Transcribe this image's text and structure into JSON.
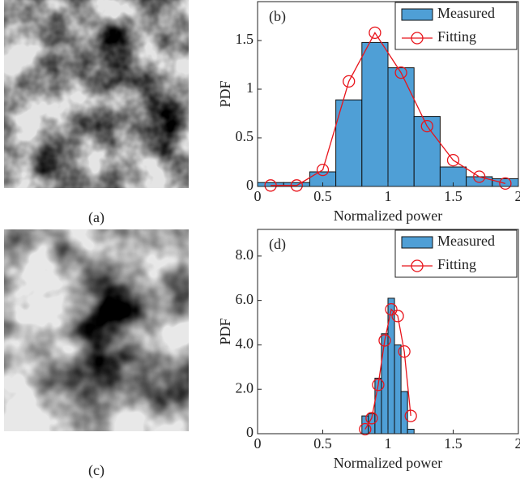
{
  "images": [
    {
      "caption": "(a)"
    },
    {
      "caption": "(c)"
    }
  ],
  "chart_data": [
    {
      "type": "histogram",
      "annotation": "(b)",
      "xlabel": "Normalized power",
      "ylabel": "PDF",
      "bins": [
        0,
        0.2,
        0.4,
        0.6,
        0.8,
        1.0,
        1.2,
        1.4,
        1.6,
        1.8,
        2.0
      ],
      "xlim": [
        0,
        2
      ],
      "xticks": [
        0,
        0.5,
        1,
        1.5,
        2
      ],
      "ylim": [
        0,
        1.9
      ],
      "yticks": [
        0,
        0.5,
        1,
        1.5
      ],
      "legend": "northeast",
      "series": [
        {
          "name": "Measured",
          "color": "#4f9fd6",
          "values": [
            0.04,
            0.04,
            0.15,
            0.89,
            1.48,
            1.22,
            0.72,
            0.2,
            0.1,
            0.08
          ]
        },
        {
          "name": "Fitting",
          "color": "#e8141b",
          "x": [
            0.1,
            0.3,
            0.5,
            0.7,
            0.9,
            1.1,
            1.3,
            1.5,
            1.7,
            1.9
          ],
          "values": [
            0.01,
            0.01,
            0.17,
            1.08,
            1.58,
            1.17,
            0.62,
            0.27,
            0.1,
            0.03
          ]
        }
      ]
    },
    {
      "type": "histogram",
      "annotation": "(d)",
      "xlabel": "Normalized power",
      "ylabel": "PDF",
      "bins": [
        0.8,
        0.85,
        0.9,
        0.95,
        1.0,
        1.05,
        1.1,
        1.15,
        1.2
      ],
      "xlim": [
        0,
        2
      ],
      "xticks": [
        0,
        0.5,
        1,
        1.5,
        2
      ],
      "ylim": [
        0,
        9.2
      ],
      "yticks": [
        0,
        {
          "value": 2,
          "label": "2.0"
        },
        {
          "value": 4,
          "label": "4.0"
        },
        {
          "value": 6,
          "label": "6.0"
        },
        {
          "value": 8,
          "label": "8.0"
        }
      ],
      "legend": "northeast",
      "series": [
        {
          "name": "Measured",
          "color": "#4f9fd6",
          "values": [
            0.8,
            0.9,
            2.5,
            4.5,
            6.1,
            4.0,
            1.9,
            0.2
          ]
        },
        {
          "name": "Fitting",
          "color": "#e8141b",
          "x": [
            0.825,
            0.875,
            0.925,
            0.975,
            1.025,
            1.075,
            1.125,
            1.175
          ],
          "values": [
            0.2,
            0.7,
            2.2,
            4.2,
            5.6,
            5.3,
            3.7,
            0.8
          ]
        }
      ]
    }
  ]
}
